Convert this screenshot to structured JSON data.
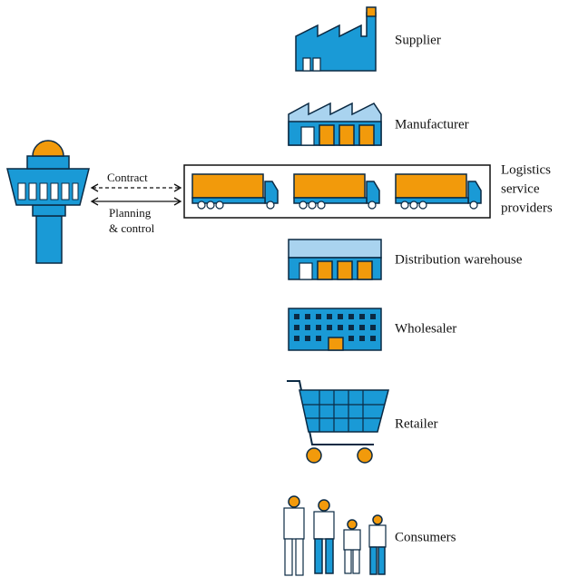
{
  "nodes": [
    {
      "label": "Supplier"
    },
    {
      "label": "Manufacturer"
    },
    {
      "label_lines": [
        "Logistics",
        "service",
        "providers"
      ]
    },
    {
      "label": "Distribution warehouse"
    },
    {
      "label": "Wholesaler"
    },
    {
      "label": "Retailer"
    },
    {
      "label": "Consumers"
    }
  ],
  "links": [
    {
      "label": "Contract"
    },
    {
      "label_lines": [
        "Planning",
        "& control"
      ]
    }
  ]
}
